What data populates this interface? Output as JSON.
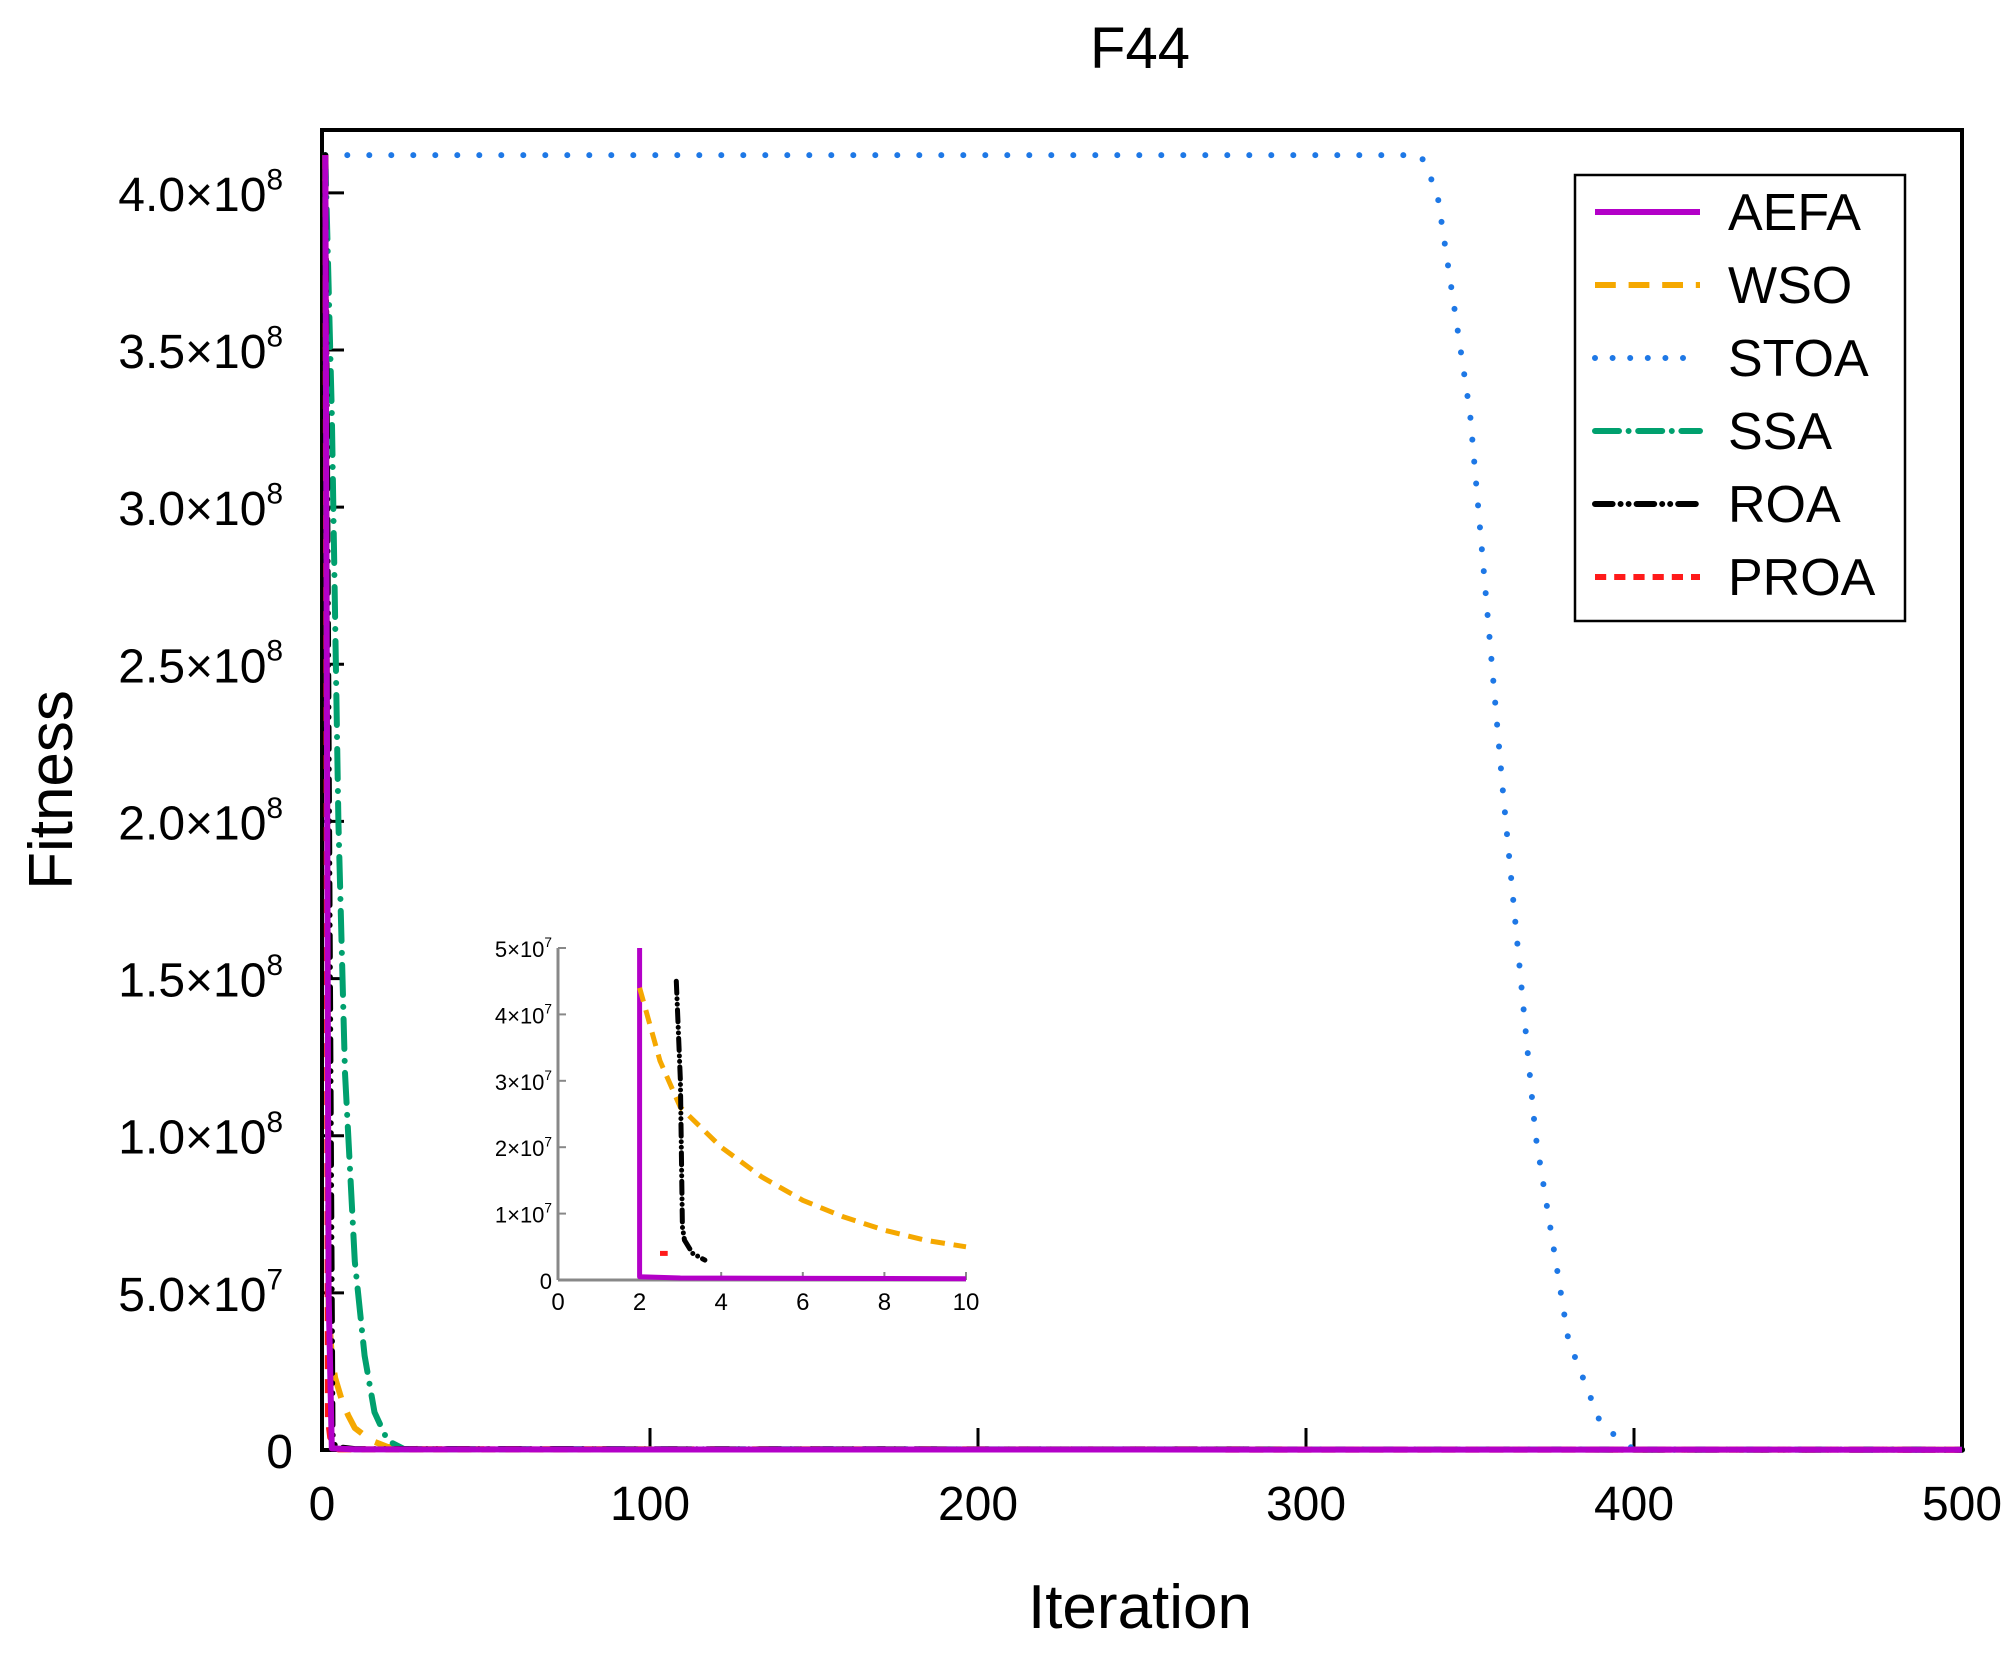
{
  "chart_data": [
    {
      "type": "line",
      "title": "F44",
      "xlabel": "Iteration",
      "ylabel": "Fitness",
      "xlim": [
        0,
        500
      ],
      "ylim": [
        0,
        420000000
      ],
      "x_ticks": [
        0,
        100,
        200,
        300,
        400,
        500
      ],
      "x_tick_labels": [
        "0",
        "100",
        "200",
        "300",
        "400",
        "500"
      ],
      "y_ticks": [
        0,
        50000000,
        100000000,
        150000000,
        200000000,
        250000000,
        300000000,
        350000000,
        400000000
      ],
      "y_tick_labels": [
        {
          "base": "0",
          "exp": ""
        },
        {
          "base": "5.0×10",
          "exp": "7"
        },
        {
          "base": "1.0×10",
          "exp": "8"
        },
        {
          "base": "1.5×10",
          "exp": "8"
        },
        {
          "base": "2.0×10",
          "exp": "8"
        },
        {
          "base": "2.5×10",
          "exp": "8"
        },
        {
          "base": "3.0×10",
          "exp": "8"
        },
        {
          "base": "3.5×10",
          "exp": "8"
        },
        {
          "base": "4.0×10",
          "exp": "8"
        }
      ],
      "legend_position": "top-right",
      "series": [
        {
          "name": "AEFA",
          "color": "#b300c8",
          "style": "solid",
          "x": [
            1,
            2,
            3,
            10,
            500
          ],
          "y": [
            412000000,
            50000000,
            500000,
            200000,
            100000
          ]
        },
        {
          "name": "WSO",
          "color": "#f5a800",
          "style": "dash",
          "x": [
            1,
            2,
            3,
            4,
            6,
            8,
            10,
            15,
            20,
            30,
            500
          ],
          "y": [
            412000000,
            45000000,
            30000000,
            23000000,
            16000000,
            11000000,
            7000000,
            3000000,
            1000000,
            300000,
            100000
          ]
        },
        {
          "name": "STOA",
          "color": "#1e78e6",
          "style": "dot",
          "x": [
            1,
            20,
            100,
            200,
            300,
            335,
            340,
            350,
            360,
            370,
            380,
            390,
            400,
            500
          ],
          "y": [
            412000000,
            412000000,
            412000000,
            412000000,
            412000000,
            412000000,
            400000000,
            330000000,
            210000000,
            100000000,
            35000000,
            8000000,
            100000,
            100000
          ]
        },
        {
          "name": "SSA",
          "color": "#00a06e",
          "style": "dashdot",
          "x": [
            1,
            3,
            5,
            7,
            10,
            13,
            16,
            20,
            25,
            500
          ],
          "y": [
            412000000,
            330000000,
            200000000,
            120000000,
            60000000,
            30000000,
            12000000,
            3000000,
            300000,
            100000
          ]
        },
        {
          "name": "ROA",
          "color": "#000000",
          "style": "dashdotdot",
          "x": [
            1,
            3,
            3.2,
            4,
            10,
            500
          ],
          "y": [
            412000000,
            45000000,
            5000000,
            1000000,
            300000,
            100000
          ]
        },
        {
          "name": "PROA",
          "color": "#ff1a1a",
          "style": "shortdash",
          "x": [
            1,
            1.8,
            2.5,
            5,
            500
          ],
          "y": [
            412000000,
            10000000,
            4000000,
            200000,
            100000
          ]
        }
      ]
    },
    {
      "type": "line",
      "inset": true,
      "xlim": [
        0,
        10
      ],
      "ylim": [
        0,
        50000000
      ],
      "x_ticks": [
        0,
        2,
        4,
        6,
        8,
        10
      ],
      "x_tick_labels": [
        "0",
        "2",
        "4",
        "6",
        "8",
        "10"
      ],
      "y_ticks": [
        0,
        10000000,
        20000000,
        30000000,
        40000000,
        50000000
      ],
      "y_tick_labels": [
        {
          "base": "0",
          "exp": ""
        },
        {
          "base": "1×10",
          "exp": "7"
        },
        {
          "base": "2×10",
          "exp": "7"
        },
        {
          "base": "3×10",
          "exp": "7"
        },
        {
          "base": "4×10",
          "exp": "7"
        },
        {
          "base": "5×10",
          "exp": "7"
        }
      ],
      "series": [
        {
          "color": "#b300c8",
          "style": "solid",
          "x": [
            2,
            2,
            3,
            10
          ],
          "y": [
            50000000,
            500000,
            300000,
            200000
          ]
        },
        {
          "color": "#f5a800",
          "style": "dash",
          "x": [
            2,
            2.5,
            3,
            4,
            5,
            6,
            7,
            8,
            9,
            10
          ],
          "y": [
            44000000,
            33000000,
            26000000,
            20000000,
            15500000,
            12000000,
            9500000,
            7500000,
            6000000,
            5000000
          ]
        },
        {
          "color": "#000000",
          "style": "dashdotdot",
          "x": [
            2.9,
            3,
            3.05,
            3.1,
            3.3,
            3.6
          ],
          "y": [
            45000000,
            30000000,
            8000000,
            6000000,
            4000000,
            3000000
          ]
        },
        {
          "color": "#ff1a1a",
          "style": "shortdash",
          "x": [
            2.5,
            2.7
          ],
          "y": [
            4000000,
            4000000
          ]
        }
      ]
    }
  ]
}
